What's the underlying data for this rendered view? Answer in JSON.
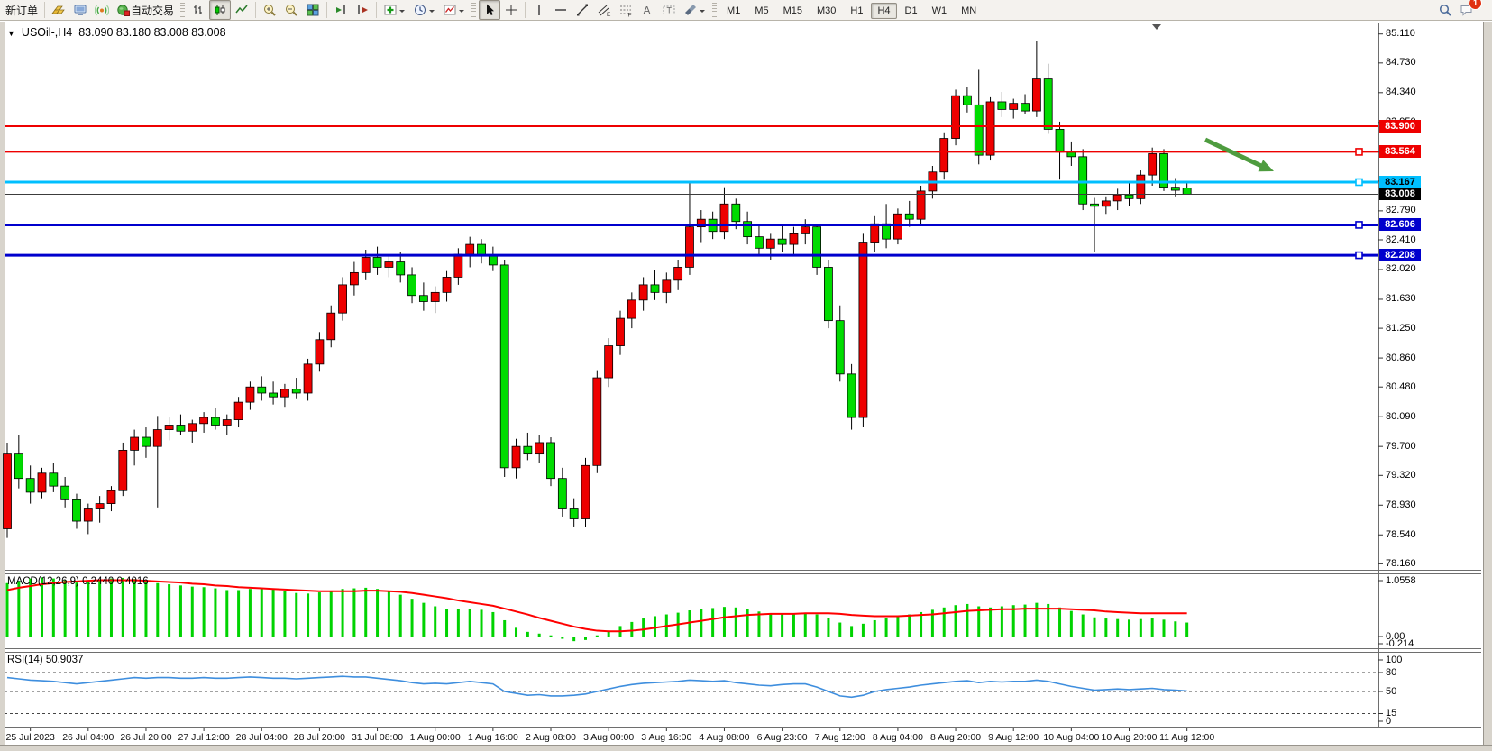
{
  "toolbar": {
    "new_order_label": "新订单",
    "auto_trading_label": "自动交易",
    "timeframes": [
      "M1",
      "M5",
      "M15",
      "M30",
      "H1",
      "H4",
      "D1",
      "W1",
      "MN"
    ],
    "active_timeframe": "H4",
    "notification_count": "1",
    "icons": [
      "gold-icon",
      "terminal-icon",
      "signal-icon",
      "autotrade-icon",
      "bar-chart-icon",
      "candlestick-chart-icon",
      "line-chart-icon",
      "zoom-in-icon",
      "zoom-out-icon",
      "tile-windows-icon",
      "auto-scroll-icon",
      "chart-shift-icon",
      "add-indicator-icon",
      "period-icon",
      "templates-icon",
      "cursor-icon",
      "crosshair-icon",
      "vertical-line-icon",
      "horizontal-line-icon",
      "trendline-icon",
      "channel-icon",
      "fibonacci-icon",
      "text-icon",
      "label-icon",
      "shapes-icon",
      "search-icon",
      "chat-icon"
    ]
  },
  "chart": {
    "collapse_arrow": "▼",
    "symbol_period": "USOil-,H4",
    "ohlc": "83.090 83.180 83.008 83.008",
    "price_axis": {
      "ticks": [
        "85.110",
        "84.730",
        "84.340",
        "83.950",
        "83.560",
        "83.180",
        "82.790",
        "82.410",
        "82.020",
        "81.630",
        "81.250",
        "80.860",
        "80.480",
        "80.090",
        "79.700",
        "79.320",
        "78.930",
        "78.540",
        "78.160"
      ]
    },
    "levels": [
      {
        "label": "83.900",
        "value": 83.9,
        "color": "#EE0000",
        "width": 2,
        "text_color": "#FFFFFF",
        "handle": false,
        "current": false
      },
      {
        "label": "83.564",
        "value": 83.564,
        "color": "#EE0000",
        "width": 2,
        "text_color": "#FFFFFF",
        "handle": true,
        "current": false
      },
      {
        "label": "83.167",
        "value": 83.167,
        "color": "#00BFFF",
        "width": 3,
        "text_color": "#000000",
        "handle": true,
        "current": false
      },
      {
        "label": "83.008",
        "value": 83.008,
        "color": "#3C3C3C",
        "width": 1,
        "text_color": "#FFFFFF",
        "handle": false,
        "current": true
      },
      {
        "label": "82.606",
        "value": 82.606,
        "color": "#0000CD",
        "width": 3,
        "text_color": "#FFFFFF",
        "handle": true,
        "current": false
      },
      {
        "label": "82.208",
        "value": 82.208,
        "color": "#0000CD",
        "width": 3,
        "text_color": "#FFFFFF",
        "handle": true,
        "current": false
      }
    ],
    "time_axis": [
      "25 Jul 2023",
      "26 Jul 04:00",
      "26 Jul 20:00",
      "27 Jul 12:00",
      "28 Jul 04:00",
      "28 Jul 20:00",
      "31 Jul 08:00",
      "1 Aug 00:00",
      "1 Aug 16:00",
      "2 Aug 08:00",
      "3 Aug 00:00",
      "3 Aug 16:00",
      "4 Aug 08:00",
      "6 Aug 23:00",
      "7 Aug 12:00",
      "8 Aug 04:00",
      "8 Aug 20:00",
      "9 Aug 12:00",
      "10 Aug 04:00",
      "10 Aug 20:00",
      "11 Aug 12:00"
    ],
    "annotation_arrow_color": "#4E9C3F",
    "colors": {
      "bull": "#EE0000",
      "bear": "#00DC00",
      "wick": "#000000"
    }
  },
  "indicators": {
    "macd": {
      "label": "MACD(12,26,9) 0.2440 0.4016",
      "axis": [
        "1.0558",
        "0.00",
        "-0.214"
      ],
      "color_histogram": "#00D300",
      "color_signal": "#FF0000"
    },
    "rsi": {
      "label": "RSI(14) 50.9037",
      "axis": [
        "100",
        "80",
        "50",
        "15",
        "0"
      ],
      "axis_values": [
        100,
        80,
        50,
        15,
        0
      ],
      "levels": [
        80,
        50,
        15
      ],
      "color": "#3E8EDE"
    }
  },
  "chart_data": {
    "type": "candlestick",
    "symbol": "USOil",
    "timeframe": "H4",
    "price_range": [
      78.16,
      85.11
    ],
    "last_ohlc": {
      "open": 83.09,
      "high": 83.18,
      "low": 83.008,
      "close": 83.008
    },
    "candles": [
      [
        78.62,
        79.75,
        78.5,
        79.6
      ],
      [
        79.6,
        79.85,
        79.15,
        79.28
      ],
      [
        79.28,
        79.45,
        78.95,
        79.1
      ],
      [
        79.1,
        79.42,
        79.02,
        79.35
      ],
      [
        79.35,
        79.48,
        79.1,
        79.18
      ],
      [
        79.18,
        79.3,
        78.9,
        79.0
      ],
      [
        79.0,
        79.08,
        78.62,
        78.72
      ],
      [
        78.72,
        78.95,
        78.55,
        78.88
      ],
      [
        78.88,
        79.05,
        78.7,
        78.95
      ],
      [
        78.95,
        79.18,
        78.85,
        79.12
      ],
      [
        79.12,
        79.75,
        79.05,
        79.65
      ],
      [
        79.65,
        79.92,
        79.45,
        79.82
      ],
      [
        79.82,
        79.95,
        79.55,
        79.7
      ],
      [
        79.7,
        80.1,
        78.9,
        79.92
      ],
      [
        79.92,
        80.08,
        79.78,
        79.98
      ],
      [
        79.98,
        80.12,
        79.85,
        79.9
      ],
      [
        79.9,
        80.05,
        79.75,
        80.0
      ],
      [
        80.0,
        80.15,
        79.88,
        80.08
      ],
      [
        80.08,
        80.2,
        79.92,
        79.98
      ],
      [
        79.98,
        80.12,
        79.85,
        80.05
      ],
      [
        80.05,
        80.35,
        79.95,
        80.28
      ],
      [
        80.28,
        80.55,
        80.18,
        80.48
      ],
      [
        80.48,
        80.62,
        80.3,
        80.4
      ],
      [
        80.4,
        80.55,
        80.25,
        80.35
      ],
      [
        80.35,
        80.52,
        80.22,
        80.45
      ],
      [
        80.45,
        80.6,
        80.32,
        80.4
      ],
      [
        80.4,
        80.85,
        80.3,
        80.78
      ],
      [
        80.78,
        81.2,
        80.68,
        81.1
      ],
      [
        81.1,
        81.55,
        81.0,
        81.45
      ],
      [
        81.45,
        81.92,
        81.35,
        81.82
      ],
      [
        81.82,
        82.12,
        81.68,
        81.98
      ],
      [
        81.98,
        82.28,
        81.88,
        82.18
      ],
      [
        82.18,
        82.32,
        81.95,
        82.05
      ],
      [
        82.05,
        82.22,
        81.92,
        82.12
      ],
      [
        82.12,
        82.25,
        81.85,
        81.95
      ],
      [
        81.95,
        82.05,
        81.58,
        81.68
      ],
      [
        81.68,
        81.85,
        81.48,
        81.6
      ],
      [
        81.6,
        81.8,
        81.45,
        81.72
      ],
      [
        81.72,
        82.0,
        81.6,
        81.92
      ],
      [
        81.92,
        82.3,
        81.82,
        82.22
      ],
      [
        82.22,
        82.45,
        82.05,
        82.35
      ],
      [
        82.35,
        82.42,
        82.1,
        82.2
      ],
      [
        82.2,
        82.32,
        82.0,
        82.08
      ],
      [
        82.08,
        82.15,
        79.3,
        79.42
      ],
      [
        79.42,
        79.8,
        79.28,
        79.7
      ],
      [
        79.7,
        79.88,
        79.52,
        79.6
      ],
      [
        79.6,
        79.85,
        79.48,
        79.75
      ],
      [
        79.75,
        79.82,
        79.18,
        79.28
      ],
      [
        79.28,
        79.42,
        78.78,
        78.88
      ],
      [
        78.88,
        79.02,
        78.65,
        78.75
      ],
      [
        78.75,
        79.55,
        78.65,
        79.45
      ],
      [
        79.45,
        80.7,
        79.35,
        80.6
      ],
      [
        80.6,
        81.12,
        80.48,
        81.02
      ],
      [
        81.02,
        81.48,
        80.9,
        81.38
      ],
      [
        81.38,
        81.72,
        81.25,
        81.62
      ],
      [
        81.62,
        81.92,
        81.48,
        81.82
      ],
      [
        81.82,
        82.02,
        81.62,
        81.72
      ],
      [
        81.72,
        81.98,
        81.58,
        81.88
      ],
      [
        81.88,
        82.15,
        81.75,
        82.05
      ],
      [
        82.05,
        83.17,
        81.95,
        82.58
      ],
      [
        82.58,
        82.8,
        82.38,
        82.68
      ],
      [
        82.68,
        82.78,
        82.42,
        82.52
      ],
      [
        82.52,
        83.1,
        82.42,
        82.88
      ],
      [
        82.88,
        82.95,
        82.55,
        82.65
      ],
      [
        82.65,
        82.78,
        82.35,
        82.45
      ],
      [
        82.45,
        82.6,
        82.2,
        82.3
      ],
      [
        82.3,
        82.5,
        82.15,
        82.42
      ],
      [
        82.42,
        82.6,
        82.25,
        82.35
      ],
      [
        82.35,
        82.58,
        82.22,
        82.5
      ],
      [
        82.5,
        82.68,
        82.35,
        82.58
      ],
      [
        82.58,
        82.62,
        81.95,
        82.05
      ],
      [
        82.05,
        82.15,
        81.25,
        81.35
      ],
      [
        81.35,
        81.55,
        80.55,
        80.65
      ],
      [
        80.65,
        80.78,
        79.92,
        80.08
      ],
      [
        80.08,
        82.5,
        79.95,
        82.38
      ],
      [
        82.38,
        82.72,
        82.25,
        82.62
      ],
      [
        82.62,
        82.88,
        82.3,
        82.42
      ],
      [
        82.42,
        82.82,
        82.35,
        82.75
      ],
      [
        82.75,
        82.92,
        82.58,
        82.68
      ],
      [
        82.68,
        83.12,
        82.6,
        83.05
      ],
      [
        83.05,
        83.38,
        82.95,
        83.3
      ],
      [
        83.3,
        83.82,
        83.2,
        83.74
      ],
      [
        83.74,
        84.38,
        83.65,
        84.3
      ],
      [
        84.3,
        84.42,
        84.08,
        84.18
      ],
      [
        84.18,
        84.64,
        83.4,
        83.52
      ],
      [
        83.52,
        84.28,
        83.45,
        84.22
      ],
      [
        84.22,
        84.35,
        84.02,
        84.12
      ],
      [
        84.12,
        84.26,
        84.0,
        84.2
      ],
      [
        84.2,
        84.32,
        84.06,
        84.1
      ],
      [
        84.1,
        85.02,
        84.02,
        84.52
      ],
      [
        84.52,
        84.72,
        83.8,
        83.86
      ],
      [
        83.86,
        83.96,
        83.2,
        83.56
      ],
      [
        83.56,
        83.7,
        83.38,
        83.5
      ],
      [
        83.5,
        83.6,
        82.8,
        82.88
      ],
      [
        82.88,
        82.96,
        82.25,
        82.85
      ],
      [
        82.85,
        82.98,
        82.75,
        82.92
      ],
      [
        82.92,
        83.08,
        82.8,
        83.0
      ],
      [
        83.0,
        83.15,
        82.85,
        82.95
      ],
      [
        82.95,
        83.32,
        82.88,
        83.26
      ],
      [
        83.26,
        83.62,
        83.12,
        83.54
      ],
      [
        83.54,
        83.6,
        83.05,
        83.1
      ],
      [
        83.1,
        83.22,
        82.98,
        83.06
      ],
      [
        83.09,
        83.18,
        83.008,
        83.008
      ]
    ],
    "macd_histogram": [
      0.92,
      0.96,
      1.0,
      1.02,
      1.0,
      0.97,
      0.93,
      0.95,
      0.98,
      1.0,
      1.01,
      0.99,
      0.96,
      0.92,
      0.9,
      0.88,
      0.86,
      0.85,
      0.83,
      0.8,
      0.8,
      0.82,
      0.83,
      0.81,
      0.78,
      0.75,
      0.74,
      0.76,
      0.79,
      0.82,
      0.83,
      0.84,
      0.82,
      0.78,
      0.72,
      0.65,
      0.58,
      0.52,
      0.48,
      0.47,
      0.48,
      0.46,
      0.42,
      0.28,
      0.15,
      0.08,
      0.05,
      0.02,
      -0.04,
      -0.08,
      -0.06,
      0.02,
      0.1,
      0.18,
      0.25,
      0.31,
      0.35,
      0.38,
      0.41,
      0.45,
      0.48,
      0.49,
      0.51,
      0.5,
      0.47,
      0.43,
      0.4,
      0.39,
      0.4,
      0.41,
      0.38,
      0.32,
      0.24,
      0.18,
      0.22,
      0.28,
      0.32,
      0.35,
      0.38,
      0.42,
      0.46,
      0.5,
      0.54,
      0.56,
      0.52,
      0.5,
      0.52,
      0.54,
      0.55,
      0.58,
      0.56,
      0.5,
      0.44,
      0.38,
      0.33,
      0.31,
      0.3,
      0.29,
      0.3,
      0.31,
      0.29,
      0.26,
      0.24
    ],
    "macd_signal": [
      0.8,
      0.84,
      0.87,
      0.9,
      0.92,
      0.94,
      0.95,
      0.96,
      0.97,
      0.97,
      0.97,
      0.97,
      0.96,
      0.95,
      0.94,
      0.93,
      0.91,
      0.9,
      0.88,
      0.87,
      0.85,
      0.84,
      0.83,
      0.82,
      0.81,
      0.8,
      0.79,
      0.78,
      0.78,
      0.78,
      0.78,
      0.79,
      0.79,
      0.78,
      0.77,
      0.75,
      0.72,
      0.69,
      0.66,
      0.62,
      0.59,
      0.56,
      0.53,
      0.48,
      0.43,
      0.38,
      0.32,
      0.27,
      0.22,
      0.17,
      0.13,
      0.1,
      0.09,
      0.09,
      0.1,
      0.12,
      0.15,
      0.18,
      0.21,
      0.24,
      0.27,
      0.3,
      0.33,
      0.35,
      0.37,
      0.38,
      0.39,
      0.39,
      0.39,
      0.4,
      0.4,
      0.4,
      0.39,
      0.37,
      0.36,
      0.35,
      0.35,
      0.35,
      0.36,
      0.37,
      0.38,
      0.4,
      0.42,
      0.44,
      0.45,
      0.46,
      0.47,
      0.47,
      0.48,
      0.48,
      0.48,
      0.48,
      0.47,
      0.46,
      0.45,
      0.43,
      0.42,
      0.41,
      0.4,
      0.4,
      0.4,
      0.4,
      0.4
    ],
    "rsi": [
      72,
      70,
      68,
      67,
      66,
      64,
      62,
      64,
      66,
      68,
      70,
      72,
      71,
      72,
      72,
      71,
      71,
      72,
      71,
      71,
      72,
      73,
      72,
      71,
      71,
      70,
      71,
      72,
      73,
      74,
      73,
      73,
      71,
      69,
      67,
      64,
      62,
      63,
      62,
      64,
      66,
      64,
      62,
      50,
      47,
      44,
      45,
      43,
      43,
      44,
      46,
      50,
      54,
      58,
      61,
      63,
      64,
      65,
      66,
      68,
      67,
      66,
      67,
      64,
      62,
      60,
      59,
      61,
      62,
      62,
      57,
      50,
      43,
      41,
      44,
      50,
      53,
      55,
      57,
      60,
      62,
      64,
      66,
      67,
      64,
      66,
      65,
      66,
      66,
      68,
      66,
      62,
      58,
      55,
      52,
      53,
      54,
      53,
      54,
      55,
      53,
      52,
      50.9
    ]
  }
}
